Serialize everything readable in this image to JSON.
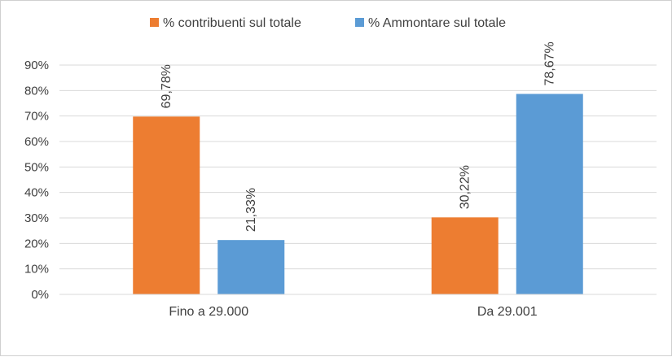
{
  "chart_data": {
    "type": "bar",
    "categories": [
      "Fino a 29.000",
      "Da 29.001"
    ],
    "series": [
      {
        "name": "% contribuenti sul totale",
        "values": [
          69.78,
          30.22
        ],
        "labels": [
          "69,78%",
          "30,22%"
        ],
        "color": "#ED7D31"
      },
      {
        "name": "% Ammontare sul totale",
        "values": [
          21.33,
          78.67
        ],
        "labels": [
          "21,33%",
          "78,67%"
        ],
        "color": "#5B9BD5"
      }
    ],
    "ylim": [
      0,
      90
    ],
    "yticks": [
      "0%",
      "10%",
      "20%",
      "30%",
      "40%",
      "50%",
      "60%",
      "70%",
      "80%",
      "90%"
    ],
    "grid": true,
    "gridColor": "#d9d9d9",
    "legend": "top-center",
    "title": "",
    "xlabel": "",
    "ylabel": ""
  }
}
